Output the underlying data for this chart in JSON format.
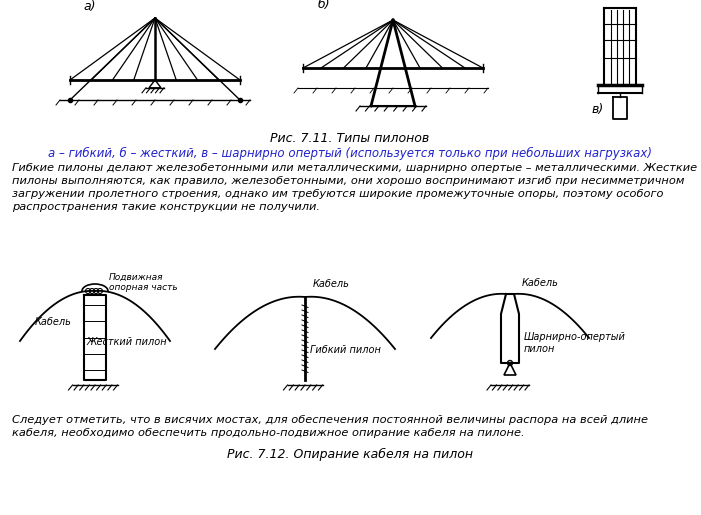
{
  "background_color": "#ffffff",
  "fig_caption1": "Рис. 7.11. Типы пилонов",
  "fig_caption2": "а – гибкий, б – жесткий, в – шарнирно опертый (используется только при небольших нагрузках)",
  "paragraph1_line1": "Гибкие пилоны делают железобетонными или металлическими, шарнирно опертые – металлическими. Жесткие",
  "paragraph1_line2": "пилоны выполняются, как правило, железобетонными, они хорошо воспринимают изгиб при несимметричном",
  "paragraph1_line3": "загружении пролетного строения, однако им требуются широкие промежуточные опоры, поэтому особого",
  "paragraph1_line4": "распространения такие конструкции не получили.",
  "label_a": "а)",
  "label_b": "б)",
  "label_v": "в)",
  "label_podvizhnaya": "Подвижная\nопорная часть",
  "label_kabel1": "Кабель",
  "label_kabel2": "Кабель",
  "label_kabel3": "Кабель",
  "label_zhestkiy": "Жесткий пилон",
  "label_gibkiy": "Гибкий пилон",
  "label_sharnirno": "Шарнирно-опертый\nпилон",
  "fig_caption3": "Рис. 7.12. Опирание кабеля на пилон",
  "paragraph2_line1": "Следует отметить, что в висячих мостах, для обеспечения постоянной величины распора на всей длине",
  "paragraph2_line2": "кабеля, необходимо обеспечить продольно-подвижное опирание кабеля на пилоне.",
  "text_color": "#000000",
  "line_color": "#000000"
}
